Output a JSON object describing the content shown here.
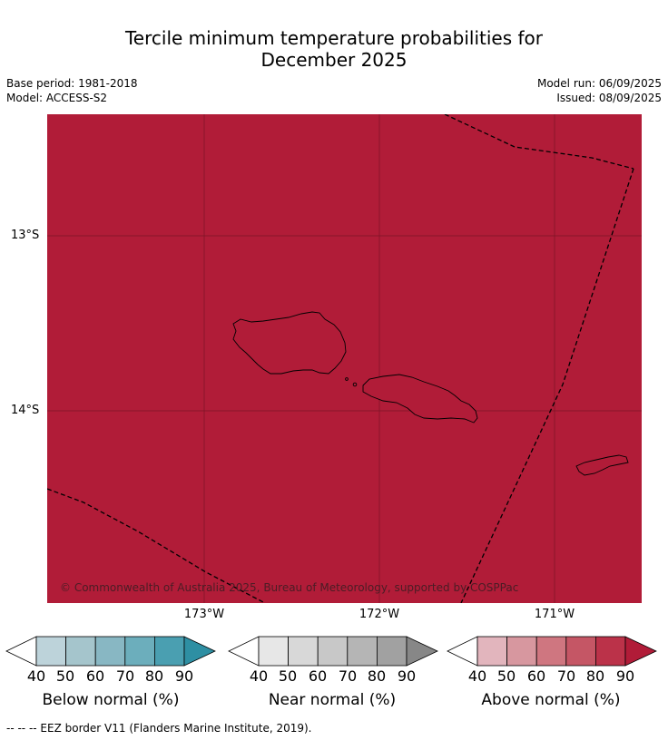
{
  "title_line1": "Tercile minimum temperature probabilities for",
  "title_line2": "December 2025",
  "base_period": "Base period: 1981-2018",
  "model": "Model: ACCESS-S2",
  "model_run": "Model run: 06/09/2025",
  "issued": "Issued: 08/09/2025",
  "copyright": "© Commonwealth of Australia 2025, Bureau of Meteorology, supported by COSPPac",
  "lat_labels": [
    "13°S",
    "14°S"
  ],
  "lon_labels": [
    "173°W",
    "172°W",
    "171°W"
  ],
  "map_fill_color": "#b11c38",
  "colorbars": [
    {
      "title": "Below normal (%)",
      "ticks": [
        "40",
        "50",
        "60",
        "70",
        "80",
        "90"
      ],
      "colors": [
        "#bdd3da",
        "#a5c5cc",
        "#88b7c3",
        "#6caebc",
        "#4a9fb1",
        "#2e8fa3"
      ]
    },
    {
      "title": "Near normal (%)",
      "ticks": [
        "40",
        "50",
        "60",
        "70",
        "80",
        "90"
      ],
      "colors": [
        "#e7e7e7",
        "#d8d8d8",
        "#c8c8c8",
        "#b5b5b5",
        "#a1a1a1",
        "#878787"
      ]
    },
    {
      "title": "Above normal (%)",
      "ticks": [
        "40",
        "50",
        "60",
        "70",
        "80",
        "90"
      ],
      "colors": [
        "#e2b5bd",
        "#d7979f",
        "#cf7680",
        "#c55665",
        "#bb3249",
        "#b11c38"
      ]
    }
  ],
  "footer": "--  --  -- EEZ border V11 (Flanders Marine Institute, 2019)."
}
